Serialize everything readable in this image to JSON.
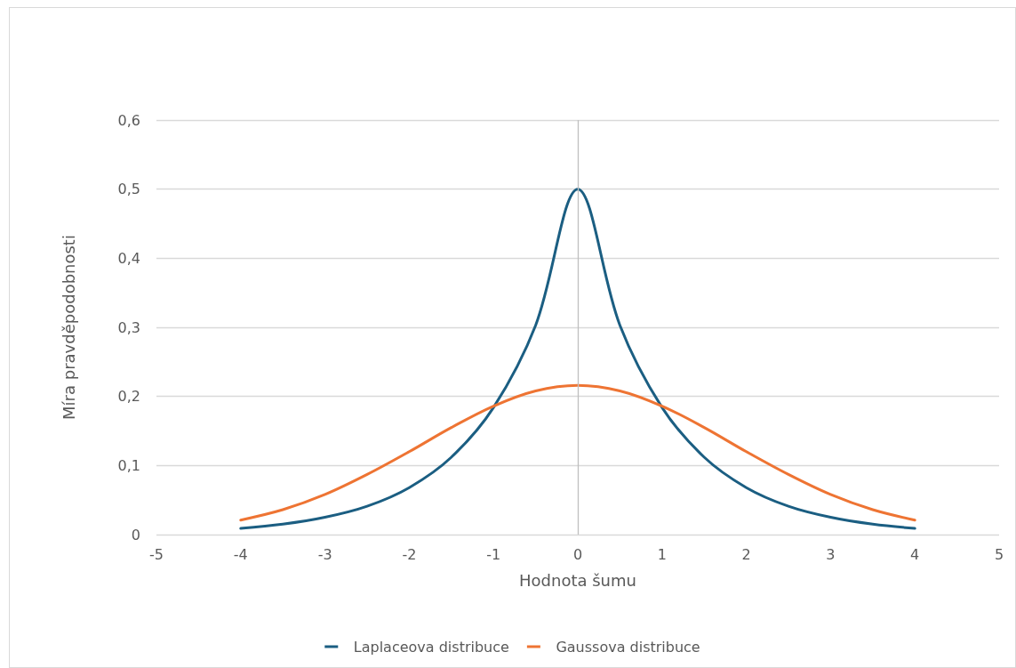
{
  "chart_data": {
    "type": "line",
    "xlabel": "Hodnota šumu",
    "ylabel": "Míra pravděpodobnosti",
    "xlim": [
      -5,
      5
    ],
    "xticks": [
      -5,
      -4,
      -3,
      -2,
      -1,
      0,
      1,
      2,
      3,
      4,
      5
    ],
    "ylim": [
      0,
      0.6
    ],
    "yticks": [
      0,
      {
        "value": 0.1,
        "label": "0,1"
      },
      {
        "value": 0.2,
        "label": "0,2"
      },
      {
        "value": 0.3,
        "label": "0,3"
      },
      {
        "value": 0.4,
        "label": "0,4"
      },
      {
        "value": 0.5,
        "label": "0,5"
      },
      {
        "value": 0.6,
        "label": "0,6"
      }
    ],
    "x": [
      -4,
      -3.5,
      -3,
      -2.5,
      -2,
      -1.5,
      -1,
      -0.5,
      0,
      0.5,
      1,
      1.5,
      2,
      2.5,
      3,
      3.5,
      4
    ],
    "series": [
      {
        "name": "Laplaceova distribuce",
        "color": "#1b5e82",
        "values": [
          0.009,
          0.015,
          0.025,
          0.041,
          0.068,
          0.112,
          0.184,
          0.303,
          0.5,
          0.303,
          0.184,
          0.112,
          0.068,
          0.041,
          0.025,
          0.015,
          0.009
        ]
      },
      {
        "name": "Gaussova distribuce",
        "color": "#ee7433",
        "values": [
          0.021,
          0.036,
          0.058,
          0.087,
          0.12,
          0.155,
          0.186,
          0.208,
          0.216,
          0.208,
          0.186,
          0.155,
          0.12,
          0.087,
          0.058,
          0.036,
          0.021
        ]
      }
    ],
    "ref_lines": [
      {
        "axis": "x",
        "value": 0,
        "color": "#bfbfbf"
      }
    ],
    "grid": "y",
    "legend": "bottom",
    "marker": "none",
    "line_style": "solid"
  }
}
